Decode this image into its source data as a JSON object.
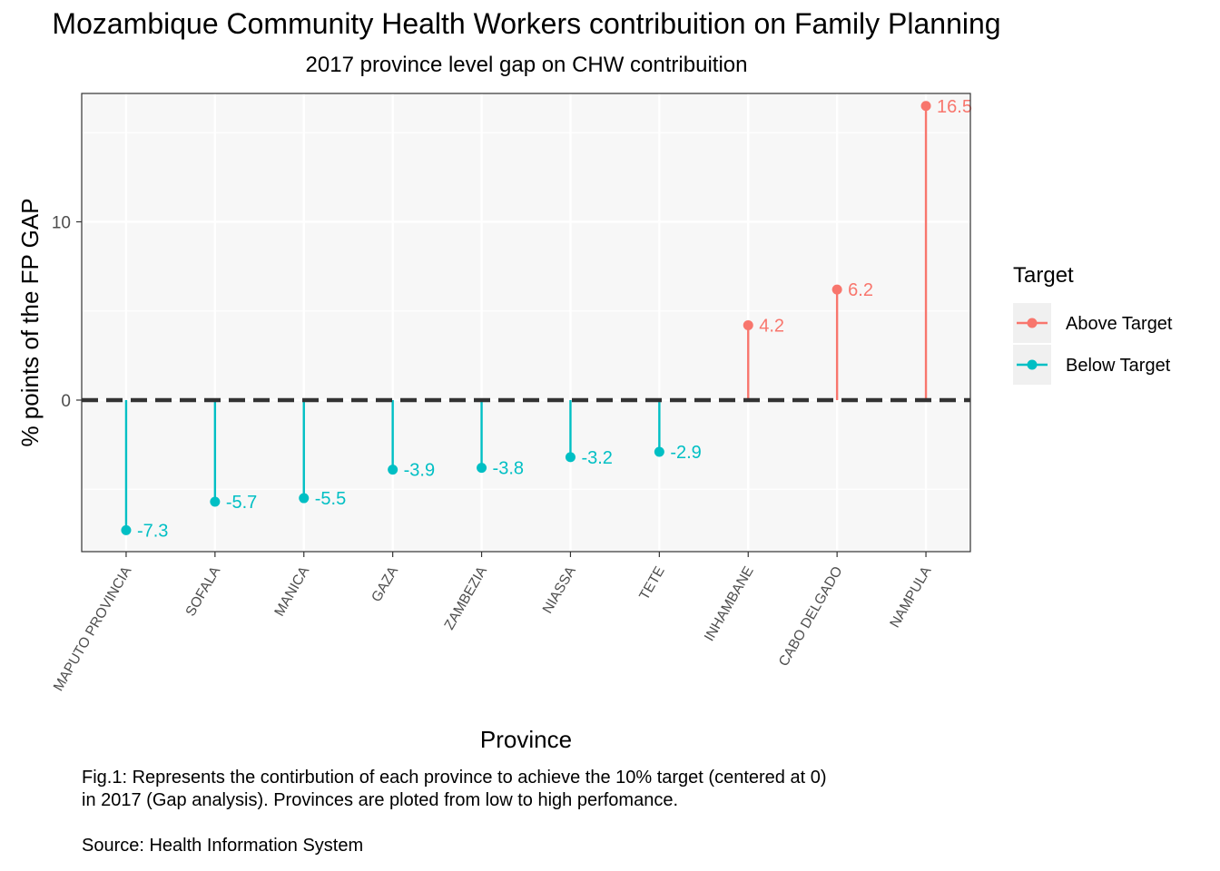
{
  "chart_data": {
    "type": "lollipop",
    "title": "Mozambique Community Health Workers contribuition on Family Planning",
    "subtitle": "2017 province level gap on CHW contribuition",
    "xlabel": "Province",
    "ylabel": "% points of the FP GAP",
    "categories": [
      "MAPUTO PROVINCIA",
      "SOFALA",
      "MANICA",
      "GAZA",
      "ZAMBEZIA",
      "NIASSA",
      "TETE",
      "INHAMBANE",
      "CABO DELGADO",
      "NAMPULA"
    ],
    "values": [
      -7.3,
      -5.7,
      -5.5,
      -3.9,
      -3.8,
      -3.2,
      -2.9,
      4.2,
      6.2,
      16.5
    ],
    "value_labels": [
      "-7.3",
      "-5.7",
      "-5.5",
      "-3.9",
      "-3.8",
      "-3.2",
      "-2.9",
      "4.2",
      "6.2",
      "16.5"
    ],
    "groups": [
      "Below Target",
      "Below Target",
      "Below Target",
      "Below Target",
      "Below Target",
      "Below Target",
      "Below Target",
      "Above Target",
      "Above Target",
      "Above Target"
    ],
    "y_ticks": [
      0,
      10
    ],
    "y_tick_labels": [
      "0",
      "10"
    ],
    "ylim": [
      -8.5,
      17.2
    ],
    "reference_line": 0,
    "legend": {
      "title": "Target",
      "position": "right",
      "entries": [
        {
          "name": "Above Target",
          "color": "#f8766d"
        },
        {
          "name": "Below Target",
          "color": "#00bfc4"
        }
      ]
    },
    "grid": true
  },
  "caption": {
    "line1": "Fig.1: Represents the contirbution of each province to achieve the 10% target (centered at 0)",
    "line2": "in 2017 (Gap analysis). Provinces are ploted from low to high perfomance.",
    "source": "Source: Health Information System"
  },
  "colors": {
    "above": "#f8766d",
    "below": "#00bfc4",
    "panel_bg": "#f7f7f7",
    "grid": "#ffffff",
    "zero_line": "#333333"
  }
}
